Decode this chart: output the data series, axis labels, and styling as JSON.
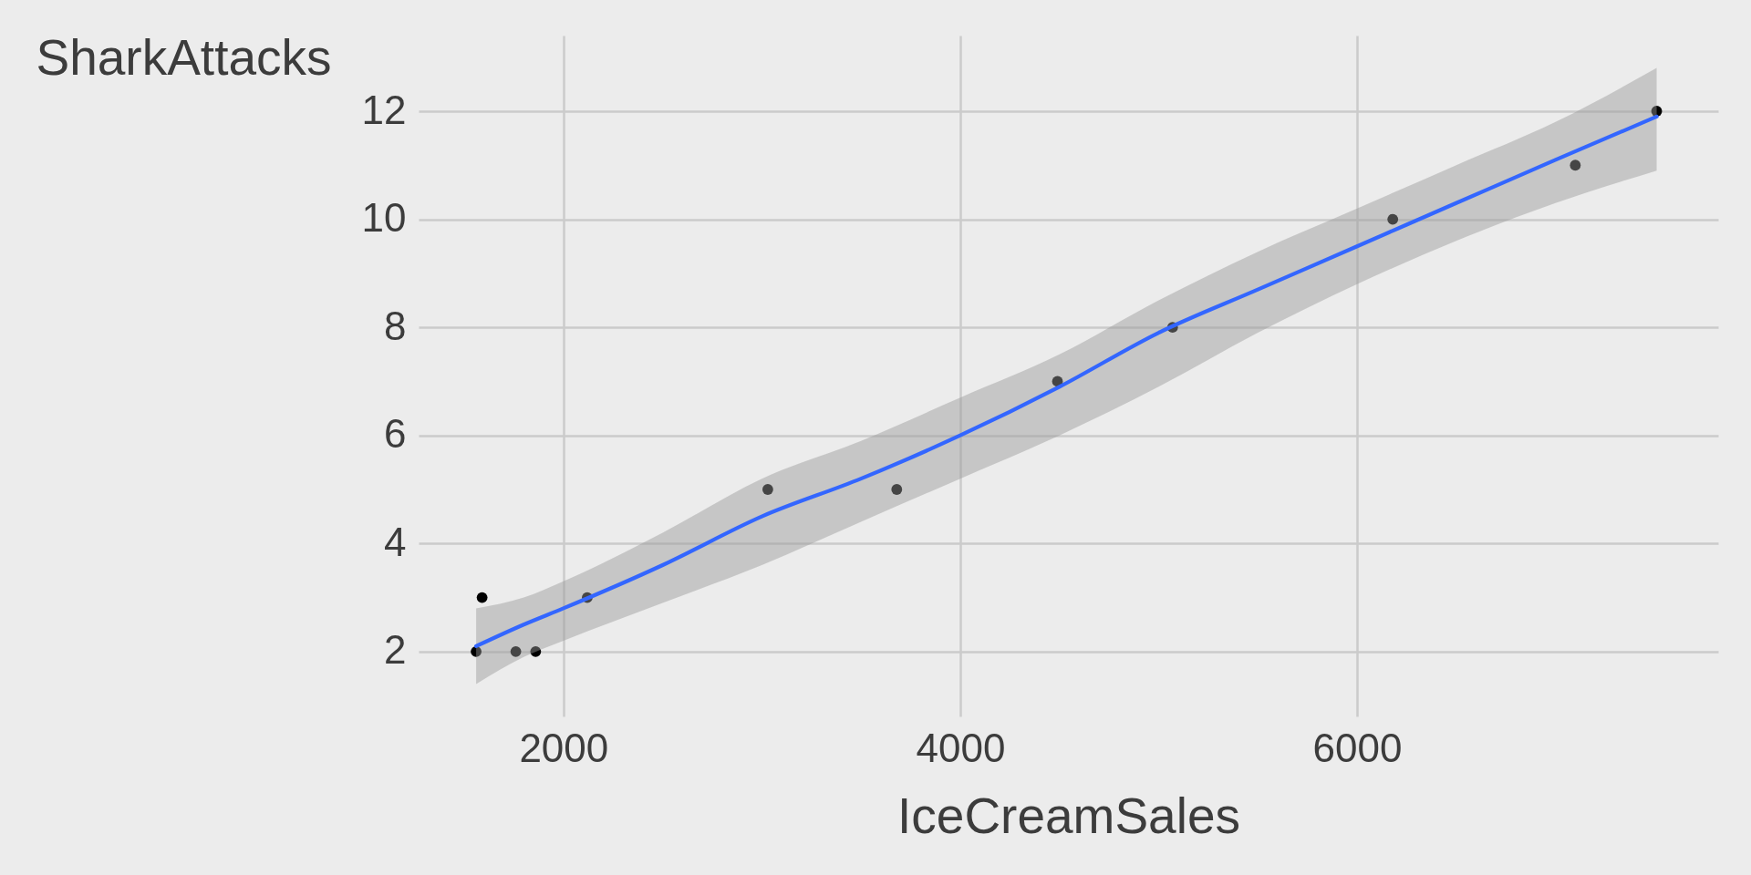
{
  "chart_data": {
    "type": "scatter",
    "xlabel": "IceCreamSales",
    "ylabel": "SharkAttacks",
    "xlim": [
      1270,
      7820
    ],
    "ylim": [
      0.8,
      13.4
    ],
    "xticks": [
      2000,
      4000,
      6000
    ],
    "yticks": [
      2,
      4,
      6,
      8,
      10,
      12
    ],
    "grid": true,
    "marker": "circle",
    "series": [
      {
        "type": "scatter",
        "color": "#000000",
        "x": [
          1560,
          1590,
          1760,
          1860,
          2120,
          3030,
          3680,
          4490,
          5070,
          6180,
          7100,
          7510
        ],
        "values": [
          2,
          3,
          2,
          2,
          3,
          5,
          5,
          7,
          8,
          10,
          11,
          12
        ]
      },
      {
        "type": "line",
        "color": "#3366ff",
        "marker": "none",
        "line_style": "solid",
        "x": [
          1560,
          1800,
          2000,
          2500,
          3000,
          3500,
          4000,
          4500,
          5000,
          5500,
          6000,
          6500,
          7000,
          7510
        ],
        "values": [
          2.1,
          2.5,
          2.8,
          3.6,
          4.5,
          5.2,
          6.0,
          6.9,
          7.9,
          8.7,
          9.5,
          10.3,
          11.1,
          11.9
        ],
        "lower": [
          1.4,
          1.9,
          2.2,
          2.9,
          3.6,
          4.4,
          5.2,
          6.0,
          6.9,
          7.9,
          8.8,
          9.6,
          10.3,
          10.9
        ],
        "upper": [
          2.8,
          3.0,
          3.3,
          4.2,
          5.2,
          5.9,
          6.7,
          7.5,
          8.5,
          9.4,
          10.2,
          11.0,
          11.8,
          12.8
        ]
      }
    ]
  }
}
